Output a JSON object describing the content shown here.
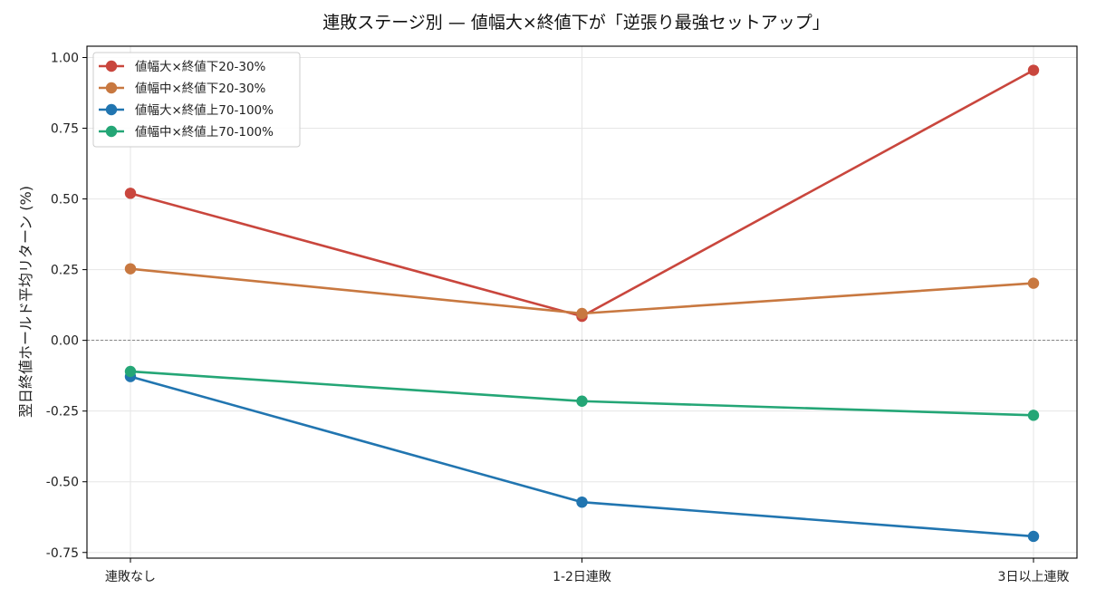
{
  "chart_data": {
    "type": "line",
    "title": "連敗ステージ別 — 値幅大×終値下が「逆張り最強セットアップ」",
    "xlabel": "",
    "ylabel": "翌日終値ホールド平均リターン (%)",
    "categories": [
      "連敗なし",
      "1-2日連敗",
      "3日以上連敗"
    ],
    "ylim": [
      -0.77,
      1.04
    ],
    "yticks": [
      -0.75,
      -0.5,
      -0.25,
      0.0,
      0.25,
      0.5,
      0.75,
      1.0
    ],
    "ytick_labels": [
      "-0.75",
      "-0.50",
      "-0.25",
      "0.00",
      "0.25",
      "0.50",
      "0.75",
      "1.00"
    ],
    "grid": true,
    "zero_line": true,
    "legend_position": "top-left",
    "series": [
      {
        "name": "値幅大×終値下20-30%",
        "color": "#c9463d",
        "values": [
          0.52,
          0.085,
          0.955
        ]
      },
      {
        "name": "値幅中×終値下20-30%",
        "color": "#c87840",
        "values": [
          0.253,
          0.095,
          0.202
        ]
      },
      {
        "name": "値幅大×終値上70-100%",
        "color": "#2175b0",
        "values": [
          -0.128,
          -0.572,
          -0.693
        ]
      },
      {
        "name": "値幅中×終値上70-100%",
        "color": "#24a676",
        "values": [
          -0.11,
          -0.215,
          -0.265
        ]
      }
    ]
  }
}
